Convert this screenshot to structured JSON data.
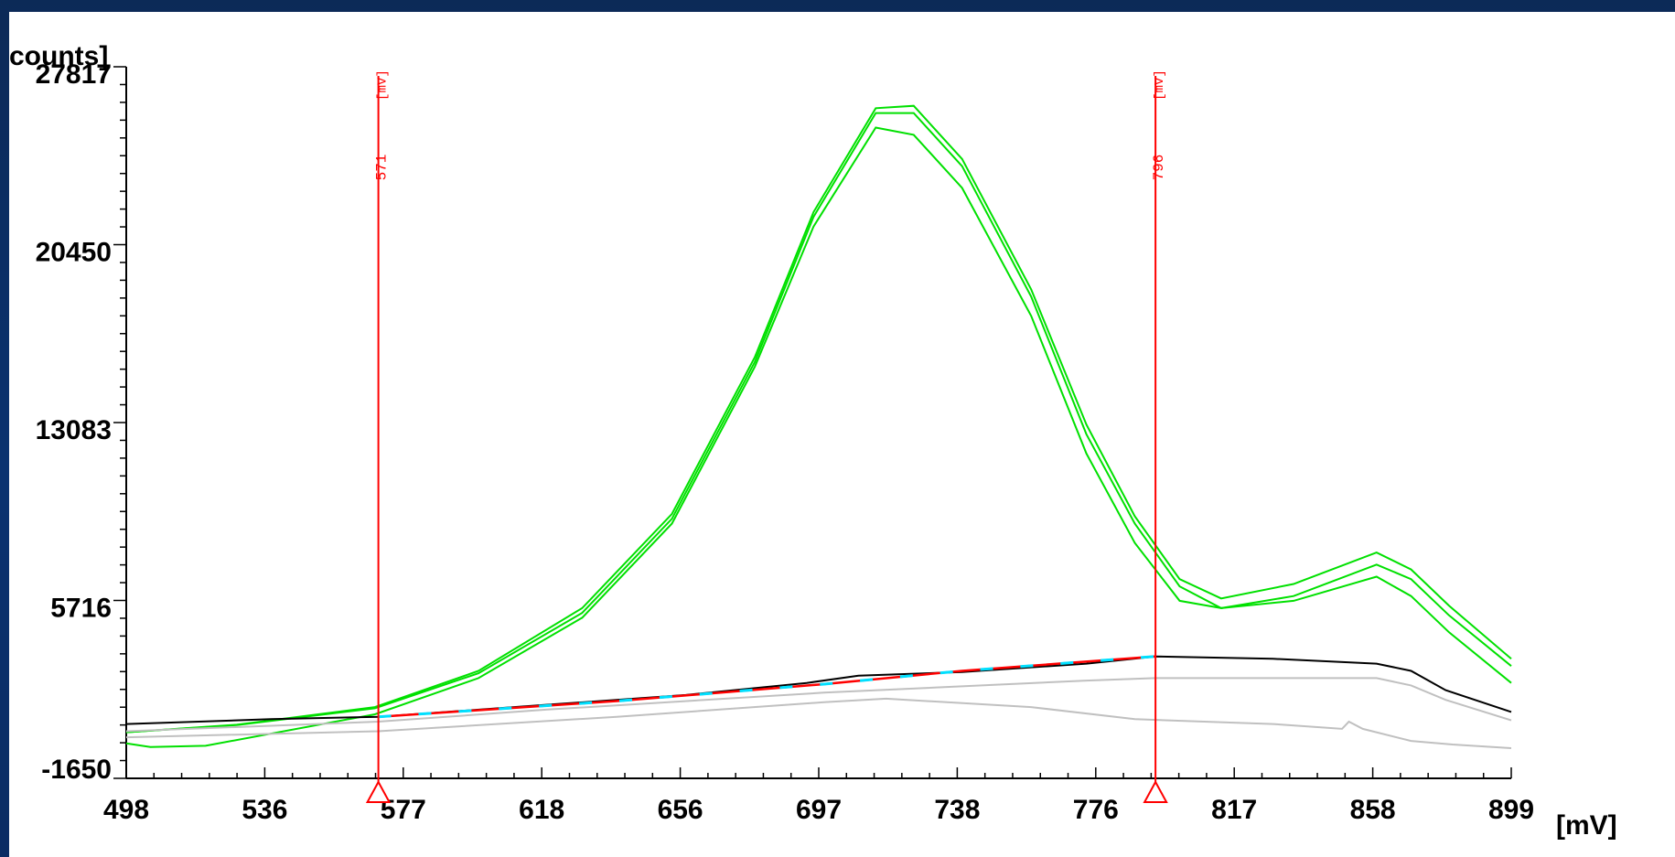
{
  "chart_data": {
    "type": "line",
    "ylabel": "counts]",
    "xunit": "[mV]",
    "x_ticks": [
      "498",
      "536",
      "577",
      "618",
      "656",
      "697",
      "738",
      "776",
      "817",
      "858",
      "899"
    ],
    "y_ticks": [
      "27817",
      "20450",
      "13083",
      "5716",
      "-1650"
    ],
    "xlim": [
      498,
      899
    ],
    "ylim": [
      -1650,
      27817
    ],
    "markers": [
      {
        "x": 571,
        "label": "571",
        "unit": "[mV]"
      },
      {
        "x": 796,
        "label": "796",
        "unit": "[mV]"
      }
    ],
    "colors": {
      "green": "#00e000",
      "black": "#000000",
      "gray": "#c0c0c0",
      "red": "#ff0000",
      "cyan": "#00e0ff"
    },
    "series": [
      {
        "color": "green",
        "points": [
          [
            498,
            260
          ],
          [
            530,
            570
          ],
          [
            570,
            1300
          ],
          [
            600,
            2800
          ],
          [
            630,
            5400
          ],
          [
            656,
            9300
          ],
          [
            680,
            15800
          ],
          [
            697,
            21800
          ],
          [
            715,
            26100
          ],
          [
            726,
            26200
          ],
          [
            740,
            24000
          ],
          [
            760,
            18600
          ],
          [
            776,
            13000
          ],
          [
            790,
            9200
          ],
          [
            803,
            6600
          ],
          [
            815,
            5800
          ],
          [
            836,
            6400
          ],
          [
            860,
            7700
          ],
          [
            870,
            7000
          ],
          [
            881,
            5500
          ],
          [
            899,
            3300
          ]
        ]
      },
      {
        "color": "green",
        "points": [
          [
            498,
            260
          ],
          [
            530,
            560
          ],
          [
            570,
            1250
          ],
          [
            600,
            2700
          ],
          [
            630,
            5200
          ],
          [
            656,
            9100
          ],
          [
            680,
            15600
          ],
          [
            697,
            21600
          ],
          [
            715,
            25900
          ],
          [
            726,
            25900
          ],
          [
            740,
            23700
          ],
          [
            760,
            18300
          ],
          [
            776,
            12600
          ],
          [
            790,
            8900
          ],
          [
            803,
            6300
          ],
          [
            815,
            5400
          ],
          [
            836,
            5900
          ],
          [
            860,
            7200
          ],
          [
            870,
            6600
          ],
          [
            881,
            5100
          ],
          [
            899,
            3000
          ]
        ]
      },
      {
        "color": "green",
        "points": [
          [
            498,
            -200
          ],
          [
            505,
            -350
          ],
          [
            521,
            -300
          ],
          [
            570,
            1000
          ],
          [
            600,
            2500
          ],
          [
            630,
            5000
          ],
          [
            656,
            8900
          ],
          [
            680,
            15400
          ],
          [
            697,
            21200
          ],
          [
            715,
            25300
          ],
          [
            726,
            25000
          ],
          [
            740,
            22800
          ],
          [
            760,
            17500
          ],
          [
            776,
            11800
          ],
          [
            790,
            8100
          ],
          [
            803,
            5700
          ],
          [
            815,
            5400
          ],
          [
            836,
            5700
          ],
          [
            860,
            6700
          ],
          [
            870,
            5900
          ],
          [
            881,
            4400
          ],
          [
            899,
            2300
          ]
        ]
      },
      {
        "color": "black",
        "points": [
          [
            498,
            600
          ],
          [
            540,
            800
          ],
          [
            571,
            900
          ],
          [
            620,
            1400
          ],
          [
            660,
            1800
          ],
          [
            695,
            2300
          ],
          [
            710,
            2600
          ],
          [
            740,
            2750
          ],
          [
            776,
            3100
          ],
          [
            796,
            3400
          ],
          [
            830,
            3300
          ],
          [
            860,
            3100
          ],
          [
            870,
            2800
          ],
          [
            880,
            2000
          ],
          [
            899,
            1100
          ]
        ]
      },
      {
        "color": "gray",
        "points": [
          [
            498,
            300
          ],
          [
            571,
            700
          ],
          [
            620,
            1200
          ],
          [
            700,
            1900
          ],
          [
            776,
            2400
          ],
          [
            796,
            2500
          ],
          [
            860,
            2500
          ],
          [
            870,
            2200
          ],
          [
            880,
            1600
          ],
          [
            899,
            750
          ]
        ]
      },
      {
        "color": "gray",
        "points": [
          [
            498,
            50
          ],
          [
            571,
            300
          ],
          [
            640,
            900
          ],
          [
            700,
            1500
          ],
          [
            718,
            1650
          ],
          [
            760,
            1300
          ],
          [
            790,
            800
          ],
          [
            830,
            600
          ],
          [
            850,
            400
          ],
          [
            852,
            700
          ],
          [
            856,
            400
          ],
          [
            870,
            -100
          ],
          [
            882,
            -250
          ],
          [
            899,
            -400
          ]
        ]
      },
      {
        "color": "red",
        "points": [
          [
            571,
            900
          ],
          [
            640,
            1550
          ],
          [
            700,
            2250
          ],
          [
            740,
            2800
          ],
          [
            796,
            3400
          ]
        ]
      },
      {
        "color": "cyan",
        "dash": true,
        "points": [
          [
            571,
            900
          ],
          [
            640,
            1550
          ],
          [
            700,
            2250
          ],
          [
            740,
            2800
          ],
          [
            796,
            3400
          ]
        ]
      }
    ]
  }
}
